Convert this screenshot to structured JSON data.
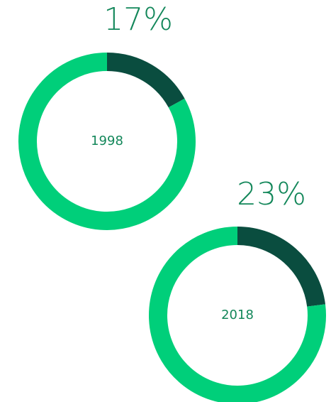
{
  "chart_data": [
    {
      "type": "donut",
      "center_label": "1998",
      "values": [
        17,
        83
      ],
      "value_labels": [
        "17%",
        null
      ],
      "colors": [
        "#0a4d3f",
        "#00cf7a"
      ]
    },
    {
      "type": "donut",
      "center_label": "2018",
      "values": [
        23,
        77
      ],
      "value_labels": [
        "23%",
        null
      ],
      "colors": [
        "#0a4d3f",
        "#00cf7a"
      ]
    }
  ]
}
